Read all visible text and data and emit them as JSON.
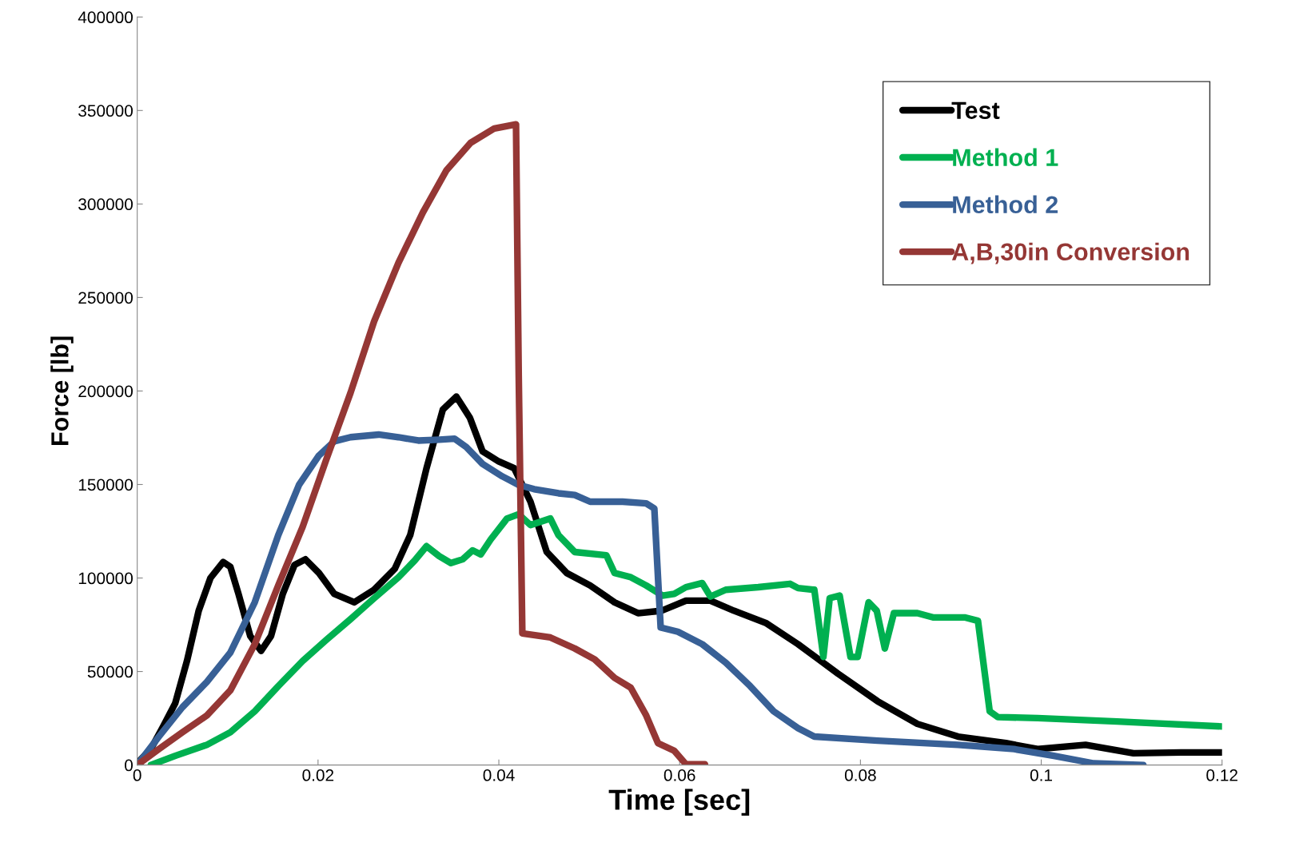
{
  "chart_data": {
    "type": "line",
    "xlabel": "Time [sec]",
    "ylabel": "Force [lb]",
    "xlim": [
      0,
      0.12
    ],
    "xticks": [
      0,
      0.02,
      0.04,
      0.06,
      0.08,
      0.1,
      0.12
    ],
    "ylim": [
      0,
      400000
    ],
    "yticks": [
      0,
      50000,
      100000,
      150000,
      200000,
      250000,
      300000,
      350000,
      400000
    ],
    "grid": false,
    "legend": "top right",
    "marker": "none",
    "line_style": "solid",
    "series": [
      {
        "name": "Test",
        "color": "#000000",
        "x": [
          0,
          0.0015,
          0.0028,
          0.0042,
          0.0055,
          0.0068,
          0.0081,
          0.0095,
          0.0103,
          0.0112,
          0.0125,
          0.0137,
          0.0148,
          0.0161,
          0.0174,
          0.0186,
          0.0201,
          0.0218,
          0.024,
          0.0262,
          0.0285,
          0.0302,
          0.032,
          0.0338,
          0.0353,
          0.0368,
          0.0382,
          0.04,
          0.0417,
          0.0435,
          0.0453,
          0.0475,
          0.0501,
          0.0528,
          0.0554,
          0.058,
          0.0607,
          0.0634,
          0.066,
          0.0696,
          0.0731,
          0.0775,
          0.0819,
          0.0863,
          0.0908,
          0.0961,
          0.0996,
          0.1049,
          0.1102,
          0.1155,
          0.12
        ],
        "values": [
          1000,
          8500,
          20000,
          33000,
          55600,
          82500,
          100000,
          108500,
          106000,
          91500,
          69000,
          61000,
          69000,
          91500,
          107000,
          110000,
          102700,
          91500,
          87000,
          93700,
          105000,
          123000,
          158700,
          190000,
          197000,
          185700,
          167700,
          162300,
          158700,
          140800,
          113900,
          102700,
          96000,
          87000,
          81200,
          82500,
          87900,
          87900,
          82500,
          75800,
          64600,
          48900,
          34100,
          22000,
          15200,
          11700,
          8500,
          10800,
          6300,
          6700,
          6700
        ]
      },
      {
        "name": "Method 1",
        "color": "#00b050",
        "x": [
          0.0015,
          0.0042,
          0.0077,
          0.0103,
          0.013,
          0.0156,
          0.0183,
          0.0209,
          0.0236,
          0.0262,
          0.0289,
          0.0307,
          0.032,
          0.0334,
          0.0347,
          0.036,
          0.0371,
          0.038,
          0.0391,
          0.0409,
          0.0422,
          0.0435,
          0.0457,
          0.0466,
          0.0484,
          0.0519,
          0.0528,
          0.0546,
          0.0563,
          0.0581,
          0.0594,
          0.0607,
          0.0625,
          0.0634,
          0.0651,
          0.0687,
          0.0722,
          0.0731,
          0.0749,
          0.0759,
          0.0766,
          0.0777,
          0.0789,
          0.0797,
          0.0809,
          0.0818,
          0.0827,
          0.0837,
          0.0863,
          0.0881,
          0.0916,
          0.093,
          0.0943,
          0.0952,
          0.0996,
          0.1084,
          0.12
        ],
        "values": [
          0,
          4900,
          10800,
          17500,
          28700,
          42200,
          55600,
          66800,
          78000,
          89200,
          100400,
          109400,
          117000,
          111700,
          108000,
          110000,
          114800,
          112600,
          120600,
          131800,
          134100,
          128300,
          131800,
          122900,
          113900,
          112100,
          102700,
          100400,
          96000,
          90600,
          91500,
          95100,
          97300,
          90100,
          93700,
          95100,
          96900,
          94600,
          93700,
          57800,
          89200,
          90600,
          57800,
          57800,
          87000,
          82500,
          62300,
          81200,
          81200,
          78900,
          78900,
          77100,
          28700,
          25600,
          25100,
          23300,
          20600
        ]
      },
      {
        "name": "Method 2",
        "color": "#386096",
        "x": [
          0,
          0.0024,
          0.005,
          0.0077,
          0.0103,
          0.013,
          0.0156,
          0.0179,
          0.0201,
          0.0218,
          0.0236,
          0.0267,
          0.0289,
          0.0311,
          0.0334,
          0.0351,
          0.0364,
          0.0382,
          0.0404,
          0.0422,
          0.0439,
          0.0466,
          0.0484,
          0.0501,
          0.0537,
          0.0563,
          0.0572,
          0.0579,
          0.0598,
          0.0625,
          0.0651,
          0.0678,
          0.0704,
          0.0731,
          0.0749,
          0.0819,
          0.0908,
          0.097,
          0.1014,
          0.1058,
          0.1113
        ],
        "values": [
          0,
          15200,
          30900,
          44400,
          60100,
          87000,
          122900,
          149800,
          165500,
          173100,
          175300,
          176700,
          175300,
          173500,
          174000,
          174500,
          170000,
          161000,
          154300,
          149800,
          147500,
          145300,
          144400,
          140800,
          140800,
          139900,
          137200,
          73500,
          71300,
          64600,
          54700,
          42200,
          28700,
          19700,
          15200,
          13000,
          10800,
          8500,
          4900,
          900,
          0
        ]
      },
      {
        "name": "A,B,30in Conversion",
        "color": "#953735",
        "x": [
          0,
          0.0024,
          0.005,
          0.0077,
          0.0103,
          0.013,
          0.0156,
          0.0183,
          0.0209,
          0.0236,
          0.0262,
          0.0289,
          0.0316,
          0.0342,
          0.0369,
          0.0395,
          0.0419,
          0.0422,
          0.0426,
          0.0457,
          0.0484,
          0.0506,
          0.0528,
          0.0546,
          0.0563,
          0.0576,
          0.0594,
          0.0607,
          0.0628
        ],
        "values": [
          0,
          8500,
          17500,
          26500,
          39900,
          64600,
          96000,
          127400,
          163200,
          199100,
          237200,
          268600,
          295500,
          318000,
          332800,
          340400,
          342600,
          208100,
          70400,
          68200,
          62300,
          56500,
          46600,
          41300,
          26500,
          11700,
          7600,
          400,
          400
        ]
      }
    ]
  }
}
